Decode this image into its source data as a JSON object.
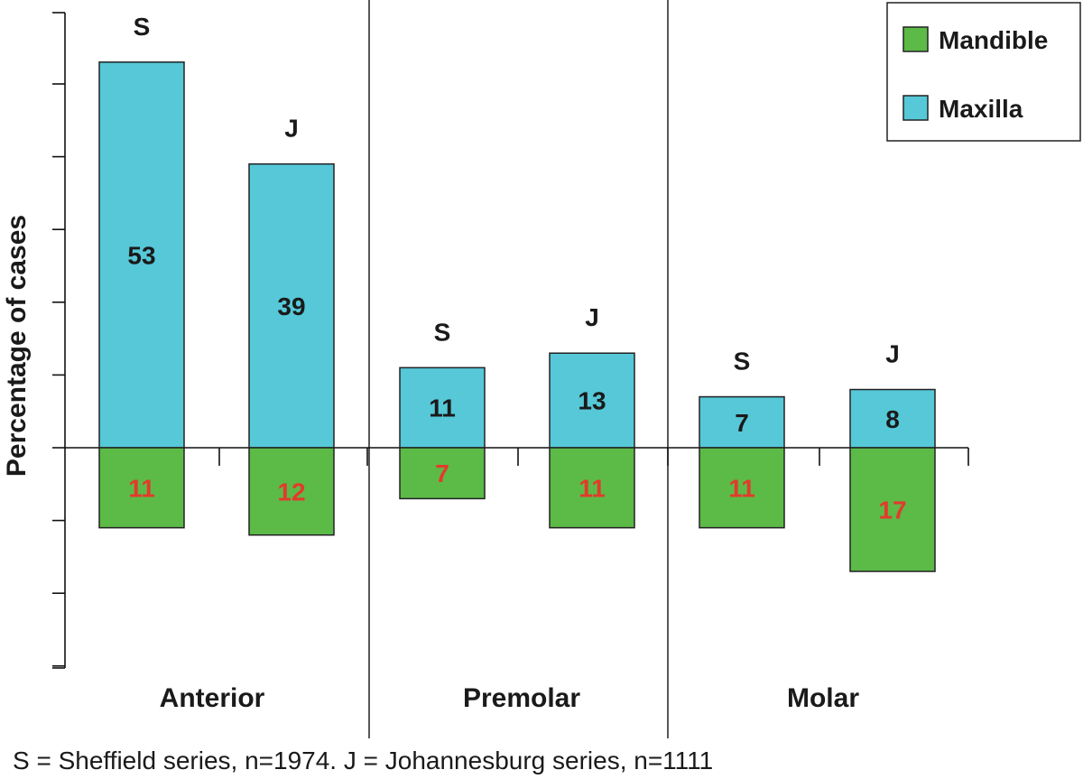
{
  "chart_data": {
    "type": "bar",
    "ylabel": "Percentage of cases",
    "groups": [
      "Anterior",
      "Premolar",
      "Molar"
    ],
    "series_letters": [
      "S",
      "J"
    ],
    "legend": [
      {
        "name": "Mandible",
        "color": "#5cba47"
      },
      {
        "name": "Maxilla",
        "color": "#56c8d8"
      }
    ],
    "legend_position": "top-right",
    "series": [
      {
        "name": "Maxilla",
        "direction": "up",
        "values": [
          53,
          39,
          11,
          13,
          7,
          8
        ]
      },
      {
        "name": "Mandible",
        "direction": "down",
        "values": [
          11,
          12,
          7,
          11,
          11,
          17
        ]
      }
    ],
    "ylim": [
      -30,
      60
    ],
    "tick_step": 10,
    "caption": "S = Sheffield series, n=1974.  J = Johannesburg series, n=1111"
  }
}
